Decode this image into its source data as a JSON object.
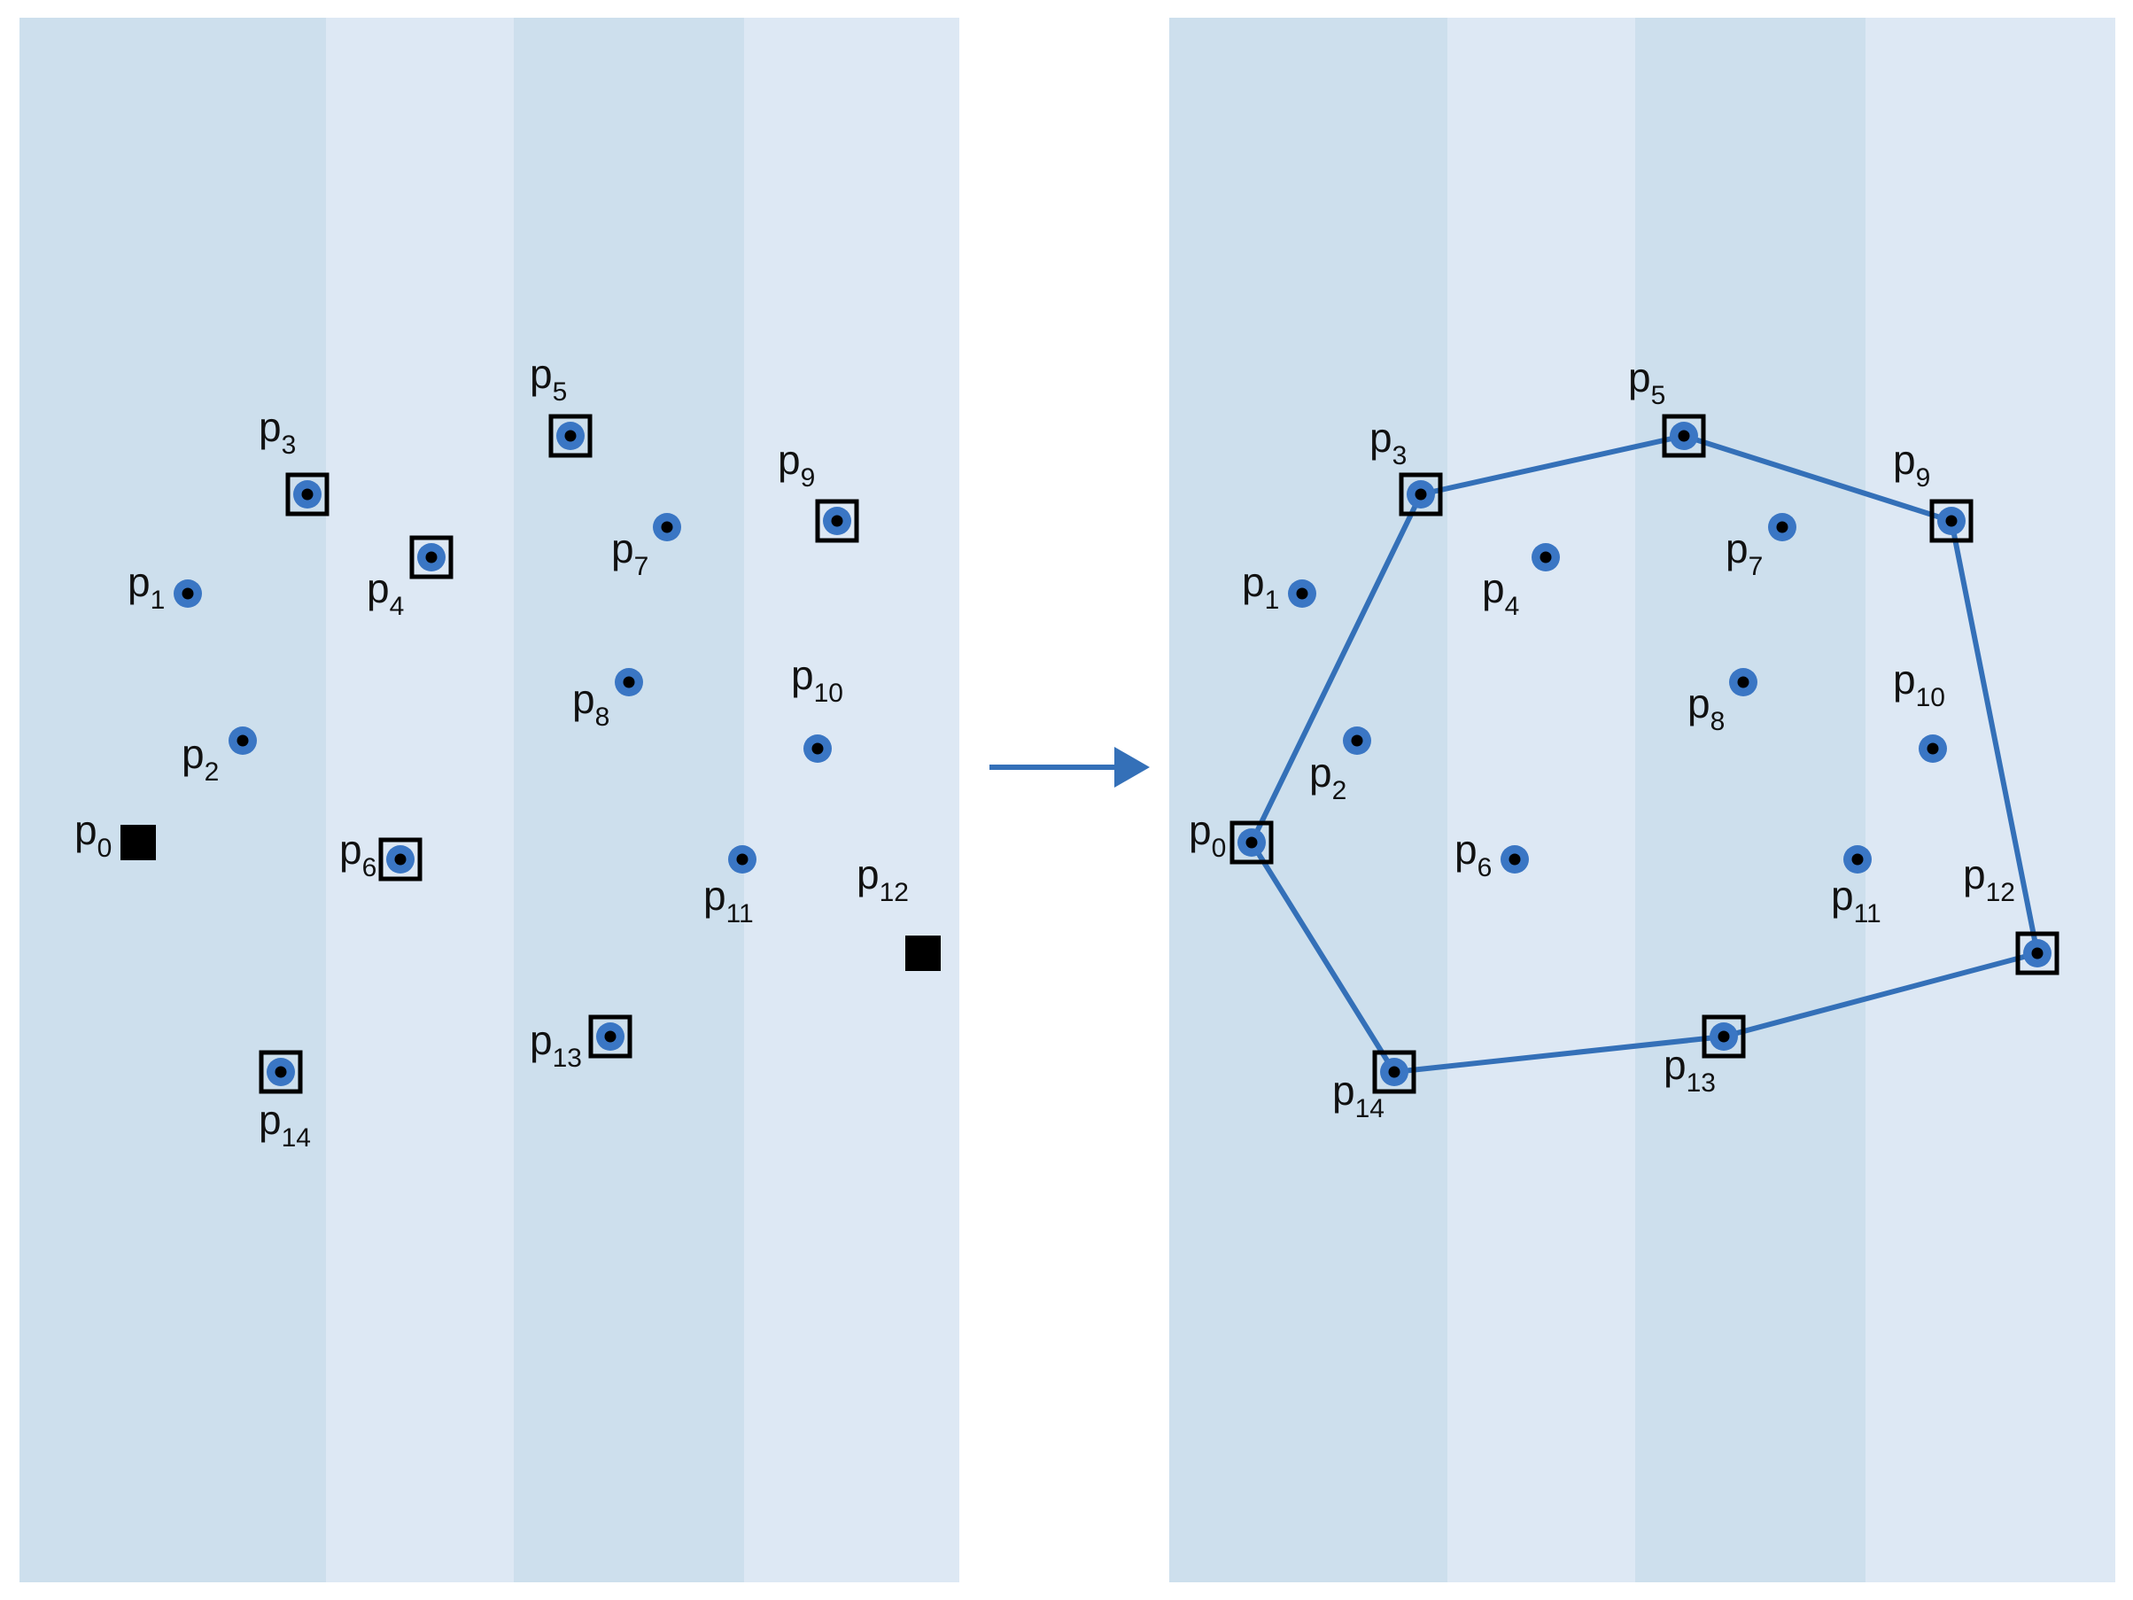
{
  "colors": {
    "stripe_dark": "#cddfed",
    "stripe_light": "#dde8f4",
    "point_fill": "#3a76c4",
    "point_center": "#000000",
    "box_stroke": "#000000",
    "hull_line": "#3470b8",
    "arrow": "#3470b8",
    "label": "#111111"
  },
  "labels": {
    "p0": {
      "base": "p",
      "sub": "0"
    },
    "p1": {
      "base": "p",
      "sub": "1"
    },
    "p2": {
      "base": "p",
      "sub": "2"
    },
    "p3": {
      "base": "p",
      "sub": "3"
    },
    "p4": {
      "base": "p",
      "sub": "4"
    },
    "p5": {
      "base": "p",
      "sub": "5"
    },
    "p6": {
      "base": "p",
      "sub": "6"
    },
    "p7": {
      "base": "p",
      "sub": "7"
    },
    "p8": {
      "base": "p",
      "sub": "8"
    },
    "p9": {
      "base": "p",
      "sub": "9"
    },
    "p10": {
      "base": "p",
      "sub": "10"
    },
    "p11": {
      "base": "p",
      "sub": "11"
    },
    "p12": {
      "base": "p",
      "sub": "12"
    },
    "p13": {
      "base": "p",
      "sub": "13"
    },
    "p14": {
      "base": "p",
      "sub": "14"
    }
  },
  "left_panel": {
    "extreme_points": [
      "p0",
      "p12"
    ],
    "boxed_points": [
      "p3",
      "p4",
      "p5",
      "p6",
      "p9",
      "p13",
      "p14"
    ],
    "plain_points": [
      "p1",
      "p2",
      "p7",
      "p8",
      "p10",
      "p11"
    ]
  },
  "right_panel": {
    "hull_order": [
      "p0",
      "p3",
      "p5",
      "p9",
      "p12",
      "p13",
      "p14"
    ],
    "boxed_points": [
      "p0",
      "p3",
      "p5",
      "p9",
      "p12",
      "p13",
      "p14"
    ],
    "plain_points": [
      "p1",
      "p2",
      "p4",
      "p6",
      "p7",
      "p8",
      "p10",
      "p11"
    ]
  }
}
